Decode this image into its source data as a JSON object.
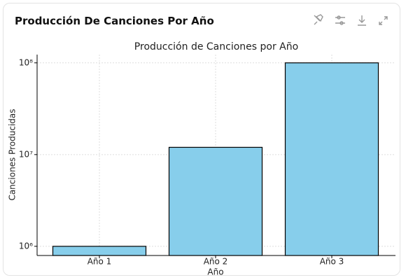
{
  "header": {
    "title": "Producción De Canciones Por Año"
  },
  "chart_data": {
    "type": "bar",
    "title": "Producción de Canciones por Año",
    "x_label": "Año",
    "y_label": "Canciones Producidas",
    "categories": [
      "Año 1",
      "Año 2",
      "Año 3"
    ],
    "values": [
      1000000,
      12000000,
      100000000
    ],
    "color": "#87ceeb",
    "edge_color": "#000000",
    "log_scale": true,
    "ylim": [
      794000,
      123000000
    ],
    "yticks": [
      {
        "value": 1000000,
        "label": "10⁶"
      },
      {
        "value": 10000000,
        "label": "10⁷"
      },
      {
        "value": 100000000,
        "label": "10⁸"
      }
    ],
    "grid": true
  }
}
